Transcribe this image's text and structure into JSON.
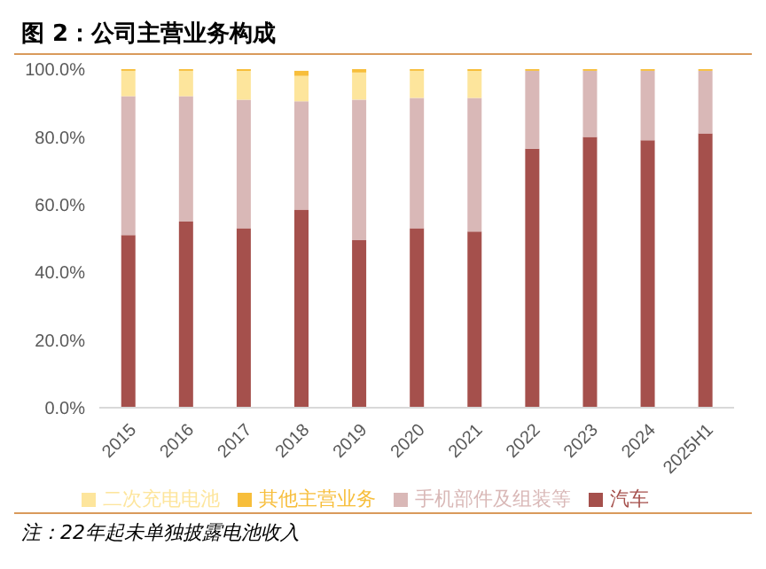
{
  "chart_data": {
    "type": "bar",
    "title": "图 2：公司主营业务构成",
    "stacked": true,
    "categories": [
      "2015",
      "2016",
      "2017",
      "2018",
      "2019",
      "2020",
      "2021",
      "2022",
      "2023",
      "2024",
      "2025H1"
    ],
    "series": [
      {
        "name": "汽车",
        "color": "#a5504c",
        "values": [
          51,
          55,
          53,
          58.5,
          49.5,
          53,
          52,
          76.5,
          80,
          79,
          81
        ]
      },
      {
        "name": "手机部件及组装等",
        "color": "#d9b8b7",
        "values": [
          41,
          37,
          38,
          32,
          41.5,
          38.5,
          39.5,
          23,
          19.5,
          20.5,
          18.5
        ]
      },
      {
        "name": "二次充电电池",
        "color": "#fde59c",
        "values": [
          7.5,
          7.5,
          8.5,
          7.5,
          8,
          8,
          8,
          null,
          null,
          null,
          null
        ]
      },
      {
        "name": "其他主营业务",
        "color": "#f7be3b",
        "values": [
          0.5,
          0.5,
          0.5,
          1.5,
          1,
          0.5,
          0.5,
          0.5,
          0.5,
          0.5,
          0.5
        ]
      }
    ],
    "ylim": [
      0,
      100
    ],
    "yticks": [
      {
        "value": 0,
        "label": "0.0%"
      },
      {
        "value": 20,
        "label": "20.0%"
      },
      {
        "value": 40,
        "label": "40.0%"
      },
      {
        "value": 60,
        "label": "60.0%"
      },
      {
        "value": 80,
        "label": "80.0%"
      },
      {
        "value": 100,
        "label": "100.0%"
      }
    ],
    "grid": false,
    "legend": "bottom",
    "annotations": [
      "注：22年起未单独披露电池收入"
    ]
  }
}
